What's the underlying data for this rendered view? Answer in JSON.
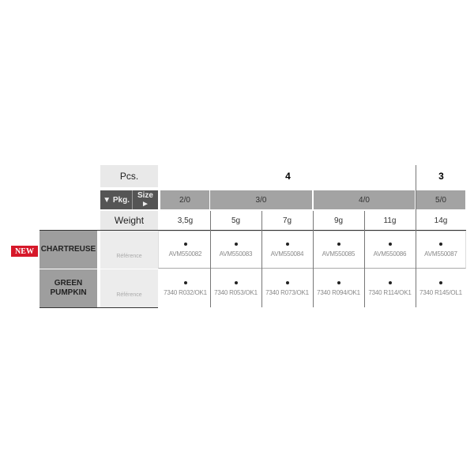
{
  "header": {
    "pcs_label": "Pcs.",
    "pkg_label": "▼ Pkg.",
    "size_label": "Size ►",
    "weight_label": "Weight"
  },
  "pcs": [
    {
      "value": "4"
    },
    {
      "value": "3"
    }
  ],
  "sizes": [
    "2/0",
    "3/0",
    "4/0",
    "5/0"
  ],
  "weights": [
    "3,5g",
    "5g",
    "7g",
    "9g",
    "11g",
    "14g"
  ],
  "badge": "NEW",
  "rows": [
    {
      "color": "CHARTREUSE",
      "ref_label": "Référence",
      "refs": [
        "AVM550082",
        "AVM550083",
        "AVM550084",
        "AVM550085",
        "AVM550086",
        "AVM550087"
      ]
    },
    {
      "color": "GREEN PUMPKIN",
      "ref_label": "Référence",
      "refs": [
        "7340 R032/OK1",
        "7340 R053/OK1",
        "7340 R073/OK1",
        "7340 R094/OK1",
        "7340 R114/OK1",
        "7340 R145/OL1"
      ]
    }
  ],
  "colors": {
    "badge": "#d6182a",
    "dark": "#555555",
    "mid": "#a3a3a3",
    "light": "#e9e9e9"
  }
}
